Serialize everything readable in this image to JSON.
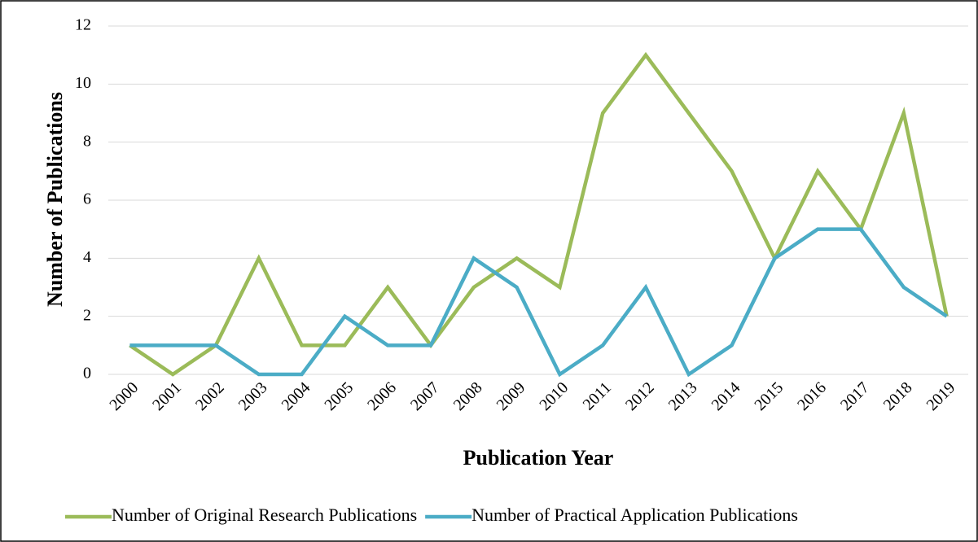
{
  "chart_data": {
    "type": "line",
    "x_label": "Publication Year",
    "y_label": "Number of Publications",
    "categories": [
      "2000",
      "2001",
      "2002",
      "2003",
      "2004",
      "2005",
      "2006",
      "2007",
      "2008",
      "2009",
      "2010",
      "2011",
      "2012",
      "2013",
      "2014",
      "2015",
      "2016",
      "2017",
      "2018",
      "2019"
    ],
    "series": [
      {
        "name": "Number of Original Research Publications",
        "color": "#9bbb59",
        "values": [
          1,
          0,
          1,
          4,
          1,
          1,
          3,
          1,
          3,
          4,
          3,
          9,
          11,
          9,
          7,
          4,
          7,
          5,
          9,
          2
        ]
      },
      {
        "name": "Number of Practical Application Publications",
        "color": "#4bacc6",
        "values": [
          1,
          1,
          1,
          0,
          0,
          2,
          1,
          1,
          4,
          3,
          0,
          1,
          3,
          0,
          1,
          4,
          5,
          5,
          3,
          2
        ]
      }
    ],
    "ylim": [
      0,
      12
    ],
    "yticks": [
      0,
      2,
      4,
      6,
      8,
      10,
      12
    ],
    "grid": true,
    "legend": "bottom"
  }
}
